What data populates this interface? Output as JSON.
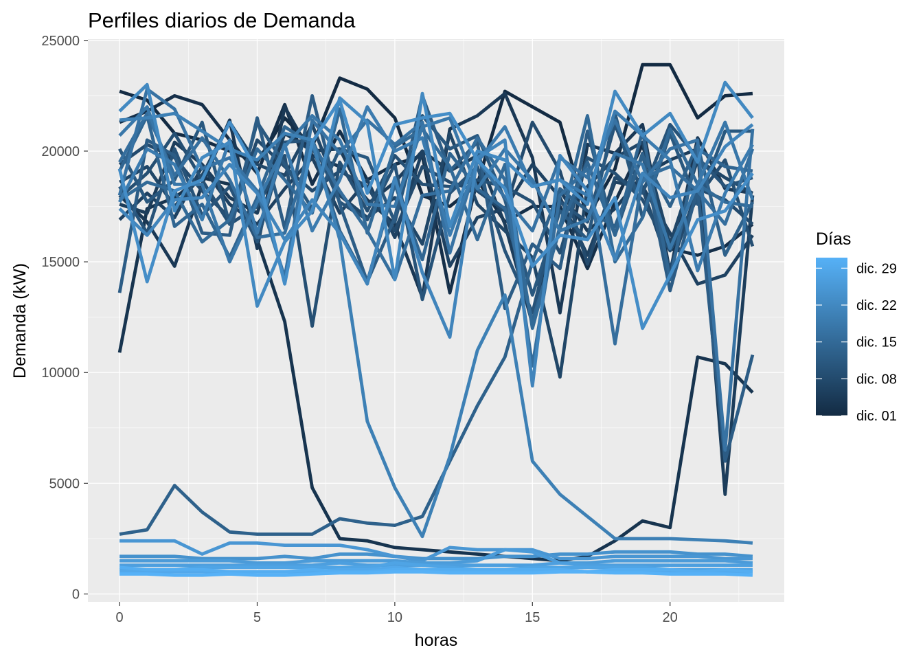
{
  "chart_data": {
    "type": "line",
    "title": "Perfiles diarios de Demanda",
    "xlabel": "horas",
    "ylabel": "Demanda (kW)",
    "xlim": [
      -1.15,
      24.15
    ],
    "ylim": [
      -355,
      25055
    ],
    "x_ticks": [
      0,
      5,
      10,
      15,
      20
    ],
    "y_ticks": [
      0,
      5000,
      10000,
      15000,
      20000,
      25000
    ],
    "y_tick_labels": [
      "0",
      "5000",
      "10000",
      "15000",
      "20000",
      "25000"
    ],
    "x_tick_labels": [
      "0",
      "5",
      "10",
      "15",
      "20"
    ],
    "grid": true,
    "legend": {
      "title": "Días",
      "placement": "right",
      "type": "colorbar",
      "low_color": "#132B43",
      "high_color": "#56B1F7",
      "range_days": [
        1,
        31
      ],
      "labels": [
        {
          "day": 29,
          "label": "dic. 29"
        },
        {
          "day": 22,
          "label": "dic. 22"
        },
        {
          "day": 15,
          "label": "dic. 15"
        },
        {
          "day": 8,
          "label": "dic. 08"
        },
        {
          "day": 1,
          "label": "dic. 01"
        }
      ]
    },
    "x": [
      0,
      1,
      2,
      3,
      4,
      5,
      6,
      7,
      8,
      9,
      10,
      11,
      12,
      13,
      14,
      15,
      16,
      17,
      18,
      19,
      20,
      21,
      22,
      23
    ],
    "series": [
      {
        "day": 1,
        "values": [
          22700,
          22300,
          20800,
          20500,
          20000,
          19500,
          21500,
          20200,
          23300,
          22800,
          21500,
          18000,
          17500,
          18500,
          22700,
          22000,
          21300,
          17000,
          19200,
          23900,
          23900,
          21500,
          22500,
          22600
        ]
      },
      {
        "day": 2,
        "values": [
          21300,
          21800,
          22500,
          22100,
          20500,
          19000,
          22100,
          18500,
          20900,
          18700,
          19400,
          19800,
          13600,
          18700,
          16800,
          17500,
          17500,
          14700,
          17700,
          20300,
          15600,
          15300,
          15700,
          16700
        ]
      },
      {
        "day": 3,
        "values": [
          10900,
          17400,
          17900,
          18800,
          18500,
          16000,
          12300,
          4800,
          2500,
          2400,
          2100,
          2000,
          1900,
          1800,
          1700,
          1600,
          1500,
          1700,
          2400,
          3300,
          3000,
          10700,
          10400,
          9100
        ]
      },
      {
        "day": 4,
        "values": [
          18000,
          16800,
          14800,
          18500,
          21400,
          15600,
          22000,
          19800,
          19300,
          17800,
          16700,
          13400,
          21000,
          21600,
          22600,
          19700,
          12700,
          20300,
          19900,
          21200,
          14500,
          20600,
          18300,
          18100
        ]
      },
      {
        "day": 5,
        "values": [
          17600,
          17200,
          20400,
          19400,
          17900,
          17200,
          20800,
          20000,
          20100,
          17600,
          18600,
          20000,
          19100,
          19800,
          16700,
          12200,
          18200,
          16400,
          17400,
          18900,
          19600,
          20100,
          4500,
          18000
        ]
      },
      {
        "day": 6,
        "values": [
          16900,
          18100,
          17000,
          19300,
          17600,
          16700,
          18300,
          19700,
          17200,
          18700,
          16100,
          20000,
          14800,
          17000,
          17400,
          19400,
          17900,
          15300,
          18600,
          18400,
          16300,
          14000,
          14400,
          16200
        ]
      },
      {
        "day": 7,
        "values": [
          18600,
          19300,
          17500,
          18900,
          21300,
          19400,
          18900,
          21200,
          18000,
          17000,
          17900,
          15800,
          20800,
          17600,
          16400,
          15200,
          9800,
          18400,
          19700,
          20400,
          15800,
          19600,
          18800,
          18100
        ]
      },
      {
        "day": 8,
        "values": [
          19400,
          20300,
          19700,
          18200,
          17000,
          20500,
          19300,
          18200,
          19100,
          18400,
          16400,
          19300,
          18600,
          18200,
          17300,
          21300,
          19100,
          14900,
          18800,
          18300,
          14700,
          18300,
          17800,
          16700
        ]
      },
      {
        "day": 9,
        "values": [
          17900,
          19000,
          20800,
          18700,
          16700,
          17500,
          19800,
          12100,
          19500,
          17300,
          19800,
          18500,
          18400,
          18700,
          18400,
          17700,
          15400,
          19700,
          19000,
          17800,
          15500,
          17900,
          19600,
          15700
        ]
      },
      {
        "day": 10,
        "values": [
          18400,
          16300,
          20100,
          17100,
          18400,
          15900,
          20400,
          20500,
          17700,
          16900,
          19400,
          13300,
          18100,
          19300,
          15500,
          12700,
          17700,
          16800,
          21200,
          18100,
          21200,
          19700,
          18400,
          18800
        ]
      },
      {
        "day": 11,
        "values": [
          20100,
          17700,
          18700,
          21300,
          16700,
          21300,
          19400,
          17400,
          20100,
          19700,
          16800,
          21600,
          20100,
          20700,
          17800,
          13500,
          17300,
          16000,
          21700,
          17000,
          20800,
          17600,
          20900,
          20900
        ]
      },
      {
        "day": 12,
        "values": [
          13600,
          20500,
          19800,
          16300,
          16200,
          21500,
          16500,
          22500,
          17600,
          14100,
          17000,
          22500,
          19100,
          20400,
          12900,
          15800,
          14700,
          20900,
          16200,
          19900,
          13700,
          18300,
          6000,
          10800
        ]
      },
      {
        "day": 13,
        "values": [
          2700,
          2900,
          4900,
          3700,
          2800,
          2700,
          2700,
          2700,
          3400,
          3200,
          3100,
          3500,
          6000,
          8500,
          10700,
          15000,
          18300,
          17300,
          16600,
          19800,
          17500,
          20300,
          15300,
          17700
        ]
      },
      {
        "day": 14,
        "values": [
          19100,
          21600,
          16600,
          17600,
          15200,
          17900,
          21100,
          20300,
          16400,
          14100,
          18500,
          15100,
          19900,
          18300,
          17400,
          12300,
          16500,
          19500,
          16200,
          20900,
          14200,
          20100,
          19300,
          19100
        ]
      },
      {
        "day": 15,
        "values": [
          17800,
          18600,
          18200,
          15900,
          16900,
          20100,
          18700,
          17200,
          21900,
          16300,
          20200,
          21000,
          19300,
          16000,
          19400,
          12000,
          16600,
          21600,
          15000,
          17000,
          21000,
          18500,
          17700,
          17500
        ]
      },
      {
        "day": 16,
        "values": [
          19500,
          21700,
          18900,
          20600,
          18700,
          16100,
          16300,
          20400,
          18200,
          16400,
          14200,
          18000,
          18200,
          20600,
          18700,
          10300,
          18000,
          19200,
          11300,
          18800,
          19300,
          18200,
          16700,
          20100
        ]
      },
      {
        "day": 17,
        "values": [
          18000,
          22800,
          21900,
          19200,
          19700,
          18200,
          14300,
          21400,
          19900,
          21400,
          20300,
          21300,
          15400,
          19600,
          17900,
          16400,
          19700,
          18800,
          21400,
          18600,
          20100,
          20500,
          6500,
          21000
        ]
      },
      {
        "day": 18,
        "values": [
          20700,
          22000,
          18500,
          18500,
          15000,
          17700,
          20200,
          21600,
          20500,
          17600,
          17500,
          21100,
          21500,
          18300,
          20100,
          18700,
          16400,
          16900,
          19900,
          19400,
          15600,
          18500,
          21300,
          17800
        ]
      },
      {
        "day": 19,
        "values": [
          17700,
          20100,
          19400,
          16900,
          20500,
          16300,
          20300,
          16400,
          18700,
          22000,
          20000,
          20600,
          16200,
          19500,
          21100,
          18400,
          18700,
          18000,
          21800,
          20700,
          19600,
          14600,
          18100,
          20300
        ]
      },
      {
        "day": 20,
        "values": [
          21400,
          21500,
          21700,
          20900,
          20100,
          19600,
          20800,
          20500,
          16000,
          7800,
          4800,
          2600,
          6200,
          11000,
          13500,
          6000,
          4500,
          3500,
          2500,
          2500,
          2500,
          2450,
          2400,
          2300
        ]
      },
      {
        "day": 21,
        "values": [
          17400,
          16200,
          17800,
          17900,
          19400,
          18100,
          16000,
          17800,
          16300,
          14000,
          18800,
          14500,
          11600,
          19700,
          20500,
          9400,
          19800,
          18200,
          15100,
          19000,
          17900,
          18200,
          20200,
          21200
        ]
      },
      {
        "day": 22,
        "values": [
          21800,
          23000,
          17300,
          19700,
          20400,
          13000,
          15900,
          17300,
          22400,
          21300,
          14200,
          22600,
          16600,
          20000,
          19600,
          18400,
          18700,
          17600,
          22700,
          20700,
          21700,
          19500,
          23100,
          21500
        ]
      },
      {
        "day": 23,
        "values": [
          19200,
          14100,
          18200,
          18700,
          21300,
          19100,
          14000,
          20400,
          22300,
          18100,
          21200,
          21500,
          21700,
          19600,
          18300,
          14800,
          16200,
          16000,
          17900,
          12000,
          14400,
          16900,
          17300,
          19000
        ]
      },
      {
        "day": 24,
        "values": [
          1700,
          1700,
          1700,
          1600,
          1600,
          1600,
          1700,
          1600,
          1800,
          1800,
          1700,
          1600,
          1600,
          1600,
          1700,
          1700,
          1800,
          1800,
          1900,
          1900,
          1900,
          1800,
          1800,
          1700
        ]
      },
      {
        "day": 25,
        "values": [
          2400,
          2400,
          2400,
          1800,
          2300,
          2300,
          2200,
          2200,
          2200,
          2000,
          1700,
          1500,
          2100,
          2000,
          2000,
          2000,
          1600,
          1600,
          1700,
          1700,
          1700,
          1700,
          1600,
          1600
        ]
      },
      {
        "day": 26,
        "values": [
          1500,
          1500,
          1500,
          1500,
          1500,
          1400,
          1400,
          1500,
          1500,
          1500,
          1500,
          1400,
          1400,
          1500,
          2000,
          1900,
          1400,
          1400,
          1500,
          1500,
          1500,
          1500,
          1500,
          1400
        ]
      },
      {
        "day": 27,
        "values": [
          1300,
          1300,
          1300,
          1300,
          1300,
          1300,
          1300,
          1300,
          1400,
          1300,
          1300,
          1300,
          1300,
          1300,
          1300,
          1300,
          1400,
          1300,
          1300,
          1300,
          1300,
          1300,
          1300,
          1300
        ]
      },
      {
        "day": 28,
        "values": [
          1100,
          1100,
          1100,
          1200,
          1200,
          1200,
          1200,
          1200,
          1200,
          1200,
          1400,
          1300,
          1200,
          1100,
          1100,
          1200,
          1200,
          1200,
          1200,
          1200,
          1100,
          1100,
          1100,
          1100
        ]
      },
      {
        "day": 29,
        "values": [
          1000,
          1000,
          1000,
          1000,
          1000,
          1000,
          1000,
          1000,
          1100,
          1100,
          1200,
          1100,
          1000,
          1000,
          1000,
          1000,
          1100,
          1000,
          1000,
          1000,
          1000,
          1000,
          1000,
          1000
        ]
      },
      {
        "day": 30,
        "values": [
          1200,
          1100,
          1100,
          1100,
          1000,
          1000,
          1000,
          1100,
          1000,
          1000,
          1100,
          1100,
          1100,
          1100,
          1100,
          1100,
          1100,
          1000,
          1100,
          1100,
          1100,
          1000,
          1100,
          1000
        ]
      },
      {
        "day": 31,
        "values": [
          900,
          900,
          850,
          850,
          900,
          850,
          850,
          900,
          950,
          950,
          1000,
          1000,
          950,
          950,
          950,
          950,
          1000,
          1000,
          950,
          950,
          900,
          900,
          900,
          850
        ]
      }
    ]
  }
}
